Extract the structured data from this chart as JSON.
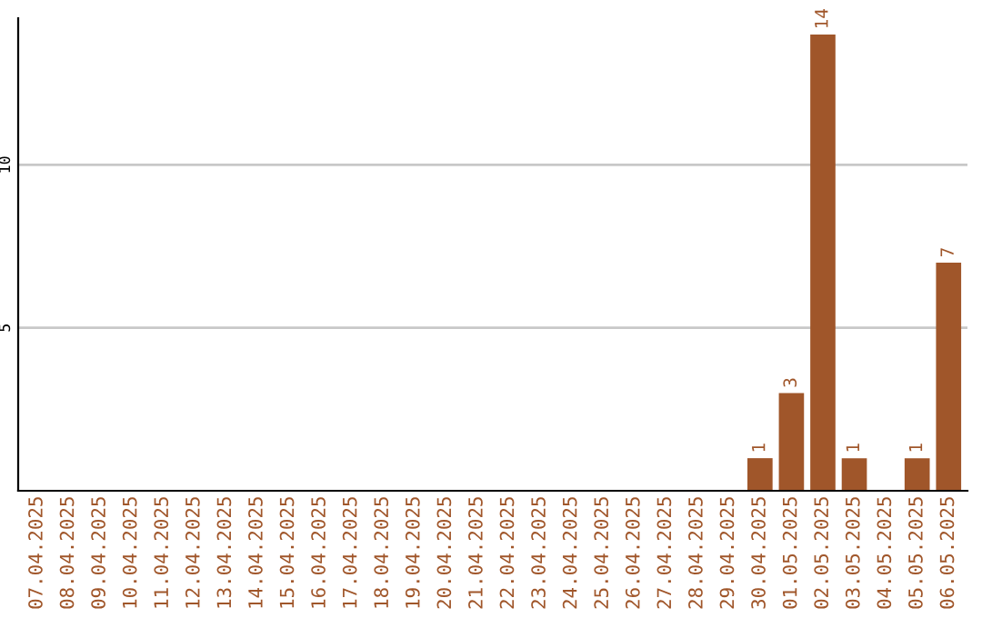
{
  "chart_data": {
    "type": "bar",
    "categories": [
      "07.04.2025",
      "08.04.2025",
      "09.04.2025",
      "10.04.2025",
      "11.04.2025",
      "12.04.2025",
      "13.04.2025",
      "14.04.2025",
      "15.04.2025",
      "16.04.2025",
      "17.04.2025",
      "18.04.2025",
      "19.04.2025",
      "20.04.2025",
      "21.04.2025",
      "22.04.2025",
      "23.04.2025",
      "24.04.2025",
      "25.04.2025",
      "26.04.2025",
      "27.04.2025",
      "28.04.2025",
      "29.04.2025",
      "30.04.2025",
      "01.05.2025",
      "02.05.2025",
      "03.05.2025",
      "04.05.2025",
      "05.05.2025",
      "06.05.2025"
    ],
    "values": [
      0,
      0,
      0,
      0,
      0,
      0,
      0,
      0,
      0,
      0,
      0,
      0,
      0,
      0,
      0,
      0,
      0,
      0,
      0,
      0,
      0,
      0,
      0,
      1,
      3,
      14,
      1,
      0,
      1,
      7
    ],
    "value_labels": [
      null,
      null,
      null,
      null,
      null,
      null,
      null,
      null,
      null,
      null,
      null,
      null,
      null,
      null,
      null,
      null,
      null,
      null,
      null,
      null,
      null,
      null,
      null,
      "1",
      "3",
      "14",
      "1",
      null,
      "1",
      "7"
    ],
    "color": "#a0562a",
    "ylim": [
      0,
      14.5
    ],
    "yticks": [
      5,
      10
    ],
    "grid": "y"
  }
}
